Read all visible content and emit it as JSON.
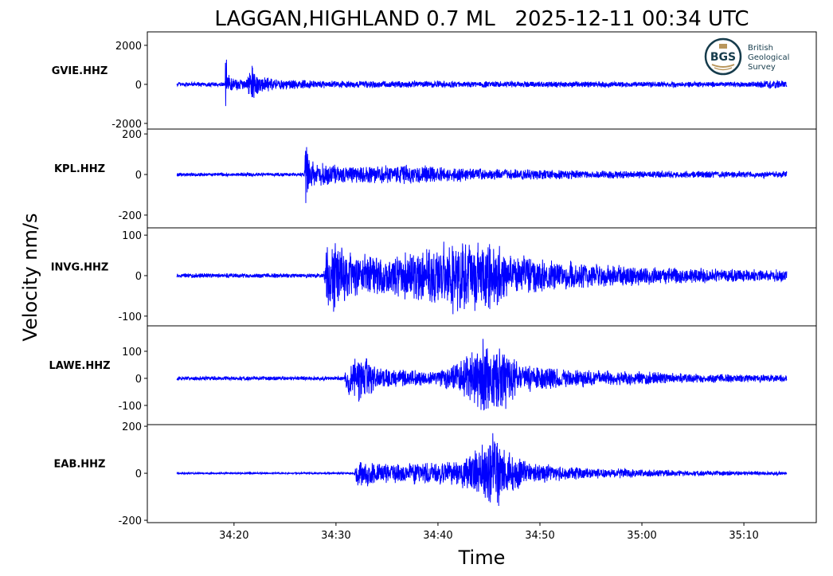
{
  "chart_data": {
    "type": "line",
    "title": "LAGGAN,HIGHLAND 0.7 ML   2025-12-11 00:34 UTC",
    "xlabel": "Time",
    "ylabel": "Velocity nm/s",
    "xlim": [
      "34:11.5",
      "35:17.1"
    ],
    "x_ticks": [
      "34:20",
      "34:30",
      "34:40",
      "34:50",
      "35:00",
      "35:10"
    ],
    "data_span": [
      "34:14.4",
      "35:14.2"
    ],
    "line_color": "#0000ff",
    "grid": false,
    "logo": {
      "name": "bgs-logo",
      "text": [
        "BGS",
        "British",
        "Geological",
        "Survey"
      ],
      "ring_color": "#163c4c",
      "accent_color": "#b9965b"
    },
    "panels": [
      {
        "station": "GVIE.HHZ",
        "ylim": [
          -2290,
          2690
        ],
        "y_ticks": [
          2000,
          0,
          -2000
        ],
        "envelope": [
          [
            "34:14.4",
            130
          ],
          [
            "34:19.1",
            130
          ],
          [
            "34:19.2",
            2400
          ],
          [
            "34:19.4",
            700
          ],
          [
            "34:20",
            320
          ],
          [
            "34:21.3",
            300
          ],
          [
            "34:21.6",
            1200
          ],
          [
            "34:22.5",
            500
          ],
          [
            "34:24",
            300
          ],
          [
            "34:30",
            200
          ],
          [
            "35:10",
            150
          ],
          [
            "35:13",
            250
          ],
          [
            "35:14.2",
            180
          ]
        ]
      },
      {
        "station": "KPL.HHZ",
        "ylim": [
          -263,
          224
        ],
        "y_ticks": [
          200,
          0,
          -200
        ],
        "envelope": [
          [
            "34:14.4",
            10
          ],
          [
            "34:26.9",
            10
          ],
          [
            "34:27",
            210
          ],
          [
            "34:27.3",
            120
          ],
          [
            "34:28",
            60
          ],
          [
            "34:32",
            45
          ],
          [
            "34:37",
            50
          ],
          [
            "34:45",
            30
          ],
          [
            "35:00",
            20
          ],
          [
            "35:14.2",
            18
          ]
        ]
      },
      {
        "station": "INVG.HHZ",
        "ylim": [
          -124,
          118
        ],
        "y_ticks": [
          100,
          0,
          -100
        ],
        "envelope": [
          [
            "34:14.4",
            6
          ],
          [
            "34:28.8",
            6
          ],
          [
            "34:29",
            80
          ],
          [
            "34:30",
            100
          ],
          [
            "34:31",
            60
          ],
          [
            "34:35",
            50
          ],
          [
            "34:38",
            70
          ],
          [
            "34:41",
            100
          ],
          [
            "34:45",
            95
          ],
          [
            "34:47",
            55
          ],
          [
            "34:52",
            40
          ],
          [
            "35:00",
            25
          ],
          [
            "35:14.2",
            15
          ]
        ]
      },
      {
        "station": "LAWE.HHZ",
        "ylim": [
          -171,
          194
        ],
        "y_ticks": [
          100,
          0,
          -100
        ],
        "envelope": [
          [
            "34:14.4",
            8
          ],
          [
            "34:30.8",
            8
          ],
          [
            "34:31",
            60
          ],
          [
            "34:32.5",
            100
          ],
          [
            "34:34",
            40
          ],
          [
            "34:39",
            30
          ],
          [
            "34:42",
            60
          ],
          [
            "34:44.5",
            160
          ],
          [
            "34:46",
            140
          ],
          [
            "34:48",
            60
          ],
          [
            "34:52",
            40
          ],
          [
            "35:05",
            18
          ],
          [
            "35:14.2",
            15
          ]
        ]
      },
      {
        "station": "EAB.HHZ",
        "ylim": [
          -210,
          207
        ],
        "y_ticks": [
          200,
          0,
          -200
        ],
        "envelope": [
          [
            "34:14.4",
            4
          ],
          [
            "34:31.8",
            4
          ],
          [
            "34:32",
            70
          ],
          [
            "34:34",
            45
          ],
          [
            "34:38",
            50
          ],
          [
            "34:42",
            60
          ],
          [
            "34:44",
            110
          ],
          [
            "34:45.5",
            190
          ],
          [
            "34:47",
            100
          ],
          [
            "34:49",
            50
          ],
          [
            "34:55",
            25
          ],
          [
            "35:05",
            12
          ],
          [
            "35:14.2",
            8
          ]
        ]
      }
    ]
  }
}
